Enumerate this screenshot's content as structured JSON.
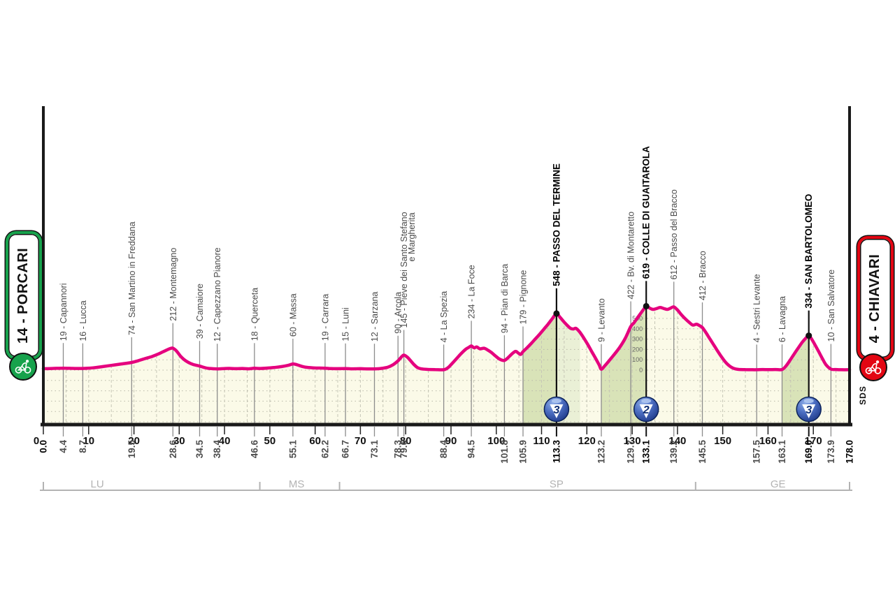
{
  "start_banner": {
    "label": "14 - PORCARI",
    "color": "#17A24C"
  },
  "finish_banner": {
    "label": "4 - CHIAVARI",
    "color": "#E30613"
  },
  "sds_mark": "SDS",
  "chart_data": {
    "type": "area",
    "x_range": [
      0,
      178
    ],
    "x_ticks_km": [
      0,
      10,
      20,
      30,
      40,
      50,
      60,
      70,
      80,
      90,
      100,
      110,
      120,
      130,
      140,
      150,
      160,
      170
    ],
    "bold_distances": [
      0,
      113.3,
      133.1,
      169,
      178
    ],
    "elevation_scale": {
      "at_km": 133.1,
      "values": [
        0,
        100,
        200,
        300,
        400,
        500
      ]
    },
    "waypoints": [
      {
        "km": 4.4,
        "elev": 19,
        "name": "Capannori",
        "label": "19 - Capannori"
      },
      {
        "km": 8.7,
        "elev": 16,
        "name": "Lucca",
        "label": "16 - Lucca"
      },
      {
        "km": 19.5,
        "elev": 74,
        "name": "San Martino in Freddana",
        "label": "74 - San Martino in Freddana"
      },
      {
        "km": 28.6,
        "elev": 212,
        "name": "Montemagno",
        "label": "212 - Montemagno"
      },
      {
        "km": 34.5,
        "elev": 39,
        "name": "Camaiore",
        "label": "39 - Camaiore"
      },
      {
        "km": 38.4,
        "elev": 12,
        "name": "Capezzano Pianore",
        "label": "12 - Capezzano Pianore"
      },
      {
        "km": 46.6,
        "elev": 18,
        "name": "Querceta",
        "label": "18 - Querceta"
      },
      {
        "km": 55.1,
        "elev": 60,
        "name": "Massa",
        "label": "60 - Massa"
      },
      {
        "km": 62.2,
        "elev": 19,
        "name": "Carrara",
        "label": "19 - Carrara"
      },
      {
        "km": 66.7,
        "elev": 15,
        "name": "Luni",
        "label": "15 - Luni"
      },
      {
        "km": 73.1,
        "elev": 12,
        "name": "Sarzana",
        "label": "12 - Sarzana"
      },
      {
        "km": 78.3,
        "elev": 90,
        "name": "Arcola",
        "label": "90 - Arcola"
      },
      {
        "km": 79.6,
        "elev": 145,
        "name": "Pieve dei Santo Stefano e Margherita",
        "label": "145 - Pieve dei Santo Stefano",
        "label2": "e Margherita"
      },
      {
        "km": 88.4,
        "elev": 4,
        "name": "La Spezia",
        "label": "4 - La Spezia"
      },
      {
        "km": 94.5,
        "elev": 234,
        "name": "La Foce",
        "label": "234 - La Foce"
      },
      {
        "km": 101.8,
        "elev": 94,
        "name": "Pian di Barca",
        "label": "94 - Pian di Barca"
      },
      {
        "km": 105.9,
        "elev": 179,
        "name": "Pignone",
        "label": "179 - Pignone"
      },
      {
        "km": 113.3,
        "elev": 548,
        "name": "Passo del Termine",
        "label": "548 - PASSO DEL TERMINE",
        "summit": 3
      },
      {
        "km": 123.2,
        "elev": 9,
        "name": "Levanto",
        "label": "9 - Levanto"
      },
      {
        "km": 129.7,
        "elev": 422,
        "name": "Bv. di Montaretto",
        "label": "422 - Bv. di Montaretto"
      },
      {
        "km": 133.1,
        "elev": 619,
        "name": "Colle di Guaitarola",
        "label": "619 - COLLE DI GUAITAROLA",
        "summit": 2
      },
      {
        "km": 139.2,
        "elev": 612,
        "name": "Passo del Bracco",
        "label": "612 - Passo del Bracco"
      },
      {
        "km": 145.5,
        "elev": 412,
        "name": "Bracco",
        "label": "412 - Bracco"
      },
      {
        "km": 157.5,
        "elev": 4,
        "name": "Sestri Levante",
        "label": "4 - Sestri Levante"
      },
      {
        "km": 163.1,
        "elev": 6,
        "name": "Lavagna",
        "label": "6 - Lavagna"
      },
      {
        "km": 169.0,
        "elev": 334,
        "name": "San Bartolomeo",
        "label": "334 - SAN BARTOLOMEO",
        "summit": 3
      },
      {
        "km": 173.9,
        "elev": 10,
        "name": "San Salvatore",
        "label": "10 - San Salvatore"
      }
    ],
    "climb_zones": [
      {
        "from": 105.9,
        "to": 113.3,
        "shade": "dark"
      },
      {
        "from": 113.3,
        "to": 118.5,
        "shade": "light"
      },
      {
        "from": 123.2,
        "to": 133.1,
        "shade": "dark"
      },
      {
        "from": 163.1,
        "to": 169.0,
        "shade": "dark"
      }
    ],
    "provinces": [
      {
        "code": "LU",
        "from": 0,
        "to": 47.8,
        "label_km": 11.9
      },
      {
        "code": "MS",
        "from": 47.8,
        "to": 65.4,
        "label_km": 55.9
      },
      {
        "code": "SP",
        "from": 65.4,
        "to": 144.0,
        "label_km": 113.3
      },
      {
        "code": "GE",
        "from": 144.0,
        "to": 178.0,
        "label_km": 162.2
      }
    ],
    "profile": [
      [
        0,
        14
      ],
      [
        2,
        16
      ],
      [
        4.4,
        19
      ],
      [
        6.5,
        17
      ],
      [
        8.7,
        16
      ],
      [
        11,
        22
      ],
      [
        13,
        34
      ],
      [
        15,
        46
      ],
      [
        17,
        58
      ],
      [
        19.5,
        74
      ],
      [
        21,
        92
      ],
      [
        22.5,
        112
      ],
      [
        24,
        132
      ],
      [
        25.5,
        158
      ],
      [
        27,
        190
      ],
      [
        28.1,
        210
      ],
      [
        28.6,
        212
      ],
      [
        29.4,
        185
      ],
      [
        30.2,
        140
      ],
      [
        31,
        105
      ],
      [
        32,
        75
      ],
      [
        33,
        56
      ],
      [
        34.5,
        39
      ],
      [
        35.5,
        26
      ],
      [
        36.5,
        17
      ],
      [
        38.4,
        12
      ],
      [
        39.5,
        14
      ],
      [
        41,
        17
      ],
      [
        42.5,
        14
      ],
      [
        44,
        16
      ],
      [
        45.3,
        13
      ],
      [
        46.6,
        18
      ],
      [
        48,
        16
      ],
      [
        49.5,
        20
      ],
      [
        51,
        26
      ],
      [
        52.5,
        34
      ],
      [
        54,
        46
      ],
      [
        55.1,
        60
      ],
      [
        56,
        52
      ],
      [
        57,
        38
      ],
      [
        58,
        28
      ],
      [
        59.5,
        22
      ],
      [
        61,
        20
      ],
      [
        62.2,
        19
      ],
      [
        63.5,
        15
      ],
      [
        65,
        14
      ],
      [
        66.7,
        15
      ],
      [
        68.5,
        13
      ],
      [
        70,
        14
      ],
      [
        71.5,
        12
      ],
      [
        73.1,
        12
      ],
      [
        74.5,
        16
      ],
      [
        76,
        28
      ],
      [
        77.2,
        52
      ],
      [
        78.3,
        90
      ],
      [
        79.1,
        130
      ],
      [
        79.6,
        145
      ],
      [
        80.3,
        128
      ],
      [
        81,
        95
      ],
      [
        81.8,
        55
      ],
      [
        82.6,
        25
      ],
      [
        83.5,
        12
      ],
      [
        85,
        7
      ],
      [
        86.5,
        5
      ],
      [
        88.4,
        4
      ],
      [
        89.3,
        22
      ],
      [
        90.2,
        62
      ],
      [
        91.2,
        110
      ],
      [
        92.2,
        158
      ],
      [
        93.2,
        200
      ],
      [
        94,
        222
      ],
      [
        94.5,
        234
      ],
      [
        95.1,
        216
      ],
      [
        95.7,
        224
      ],
      [
        96.4,
        206
      ],
      [
        97.3,
        212
      ],
      [
        98.2,
        192
      ],
      [
        99,
        168
      ],
      [
        99.8,
        138
      ],
      [
        100.6,
        110
      ],
      [
        101.3,
        96
      ],
      [
        101.8,
        94
      ],
      [
        102.4,
        112
      ],
      [
        103,
        138
      ],
      [
        103.7,
        166
      ],
      [
        104.3,
        182
      ],
      [
        104.9,
        164
      ],
      [
        105.4,
        152
      ],
      [
        105.9,
        179
      ],
      [
        106.6,
        208
      ],
      [
        107.5,
        248
      ],
      [
        108.5,
        296
      ],
      [
        109.5,
        344
      ],
      [
        110.5,
        396
      ],
      [
        111.5,
        448
      ],
      [
        112.4,
        500
      ],
      [
        113.3,
        548
      ],
      [
        114,
        516
      ],
      [
        114.8,
        474
      ],
      [
        115.6,
        436
      ],
      [
        116.4,
        404
      ],
      [
        117,
        398
      ],
      [
        117.6,
        404
      ],
      [
        118.4,
        370
      ],
      [
        119.3,
        312
      ],
      [
        120.2,
        248
      ],
      [
        121.1,
        178
      ],
      [
        122,
        108
      ],
      [
        122.7,
        52
      ],
      [
        123.2,
        9
      ],
      [
        124,
        44
      ],
      [
        125,
        96
      ],
      [
        126.2,
        160
      ],
      [
        127.4,
        230
      ],
      [
        128.5,
        310
      ],
      [
        129.7,
        422
      ],
      [
        130.4,
        458
      ],
      [
        131.2,
        508
      ],
      [
        132,
        556
      ],
      [
        132.6,
        592
      ],
      [
        133.1,
        619
      ],
      [
        133.8,
        602
      ],
      [
        134.6,
        588
      ],
      [
        135.4,
        596
      ],
      [
        136.2,
        606
      ],
      [
        137,
        596
      ],
      [
        137.8,
        588
      ],
      [
        138.5,
        600
      ],
      [
        139.2,
        612
      ],
      [
        140,
        582
      ],
      [
        140.8,
        540
      ],
      [
        141.7,
        498
      ],
      [
        142.6,
        462
      ],
      [
        143.4,
        436
      ],
      [
        144.2,
        444
      ],
      [
        144.9,
        430
      ],
      [
        145.5,
        412
      ],
      [
        146.3,
        362
      ],
      [
        147.2,
        300
      ],
      [
        148.1,
        238
      ],
      [
        149,
        176
      ],
      [
        149.9,
        118
      ],
      [
        150.8,
        68
      ],
      [
        151.7,
        34
      ],
      [
        152.6,
        14
      ],
      [
        153.6,
        7
      ],
      [
        155,
        5
      ],
      [
        156.2,
        4
      ],
      [
        157.5,
        4
      ],
      [
        158.8,
        6
      ],
      [
        160.2,
        5
      ],
      [
        161.6,
        6
      ],
      [
        163.1,
        6
      ],
      [
        164,
        42
      ],
      [
        164.9,
        98
      ],
      [
        165.8,
        158
      ],
      [
        166.7,
        216
      ],
      [
        167.6,
        272
      ],
      [
        168.4,
        312
      ],
      [
        169,
        334
      ],
      [
        169.7,
        296
      ],
      [
        170.4,
        242
      ],
      [
        171.2,
        178
      ],
      [
        172,
        112
      ],
      [
        172.8,
        52
      ],
      [
        173.9,
        10
      ],
      [
        175,
        6
      ],
      [
        176.3,
        4
      ],
      [
        178,
        4
      ]
    ],
    "colors": {
      "line": "#E5017E",
      "fill": "#FBFAE8",
      "climb_fill": "#D9E3B8",
      "climb_fill_light": "#EAF0D6",
      "grid": "#B9B9A9",
      "grid_dash": "#C6C6B6",
      "axis": "#1A1A1A",
      "waypoint_line": "#8C8C8C",
      "label": "#4A4A4A",
      "label_bold": "#000000",
      "province": "#B3B3B3",
      "badge_blue": "#1E3C96",
      "badge_number": "#102F73"
    }
  }
}
